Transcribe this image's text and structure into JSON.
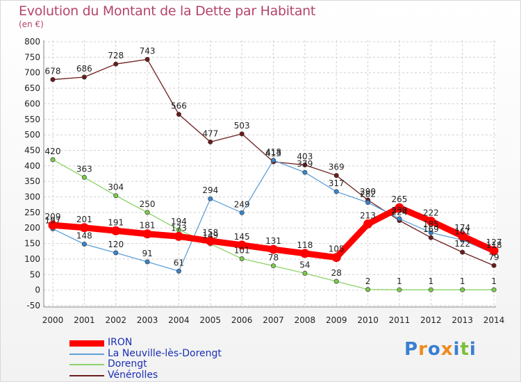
{
  "title": "Evolution du Montant de la Dette par Habitant",
  "unit_label": "(en €)",
  "logo_text": "Proxiti",
  "chart_data": {
    "type": "line",
    "title": "Evolution du Montant de la Dette par Habitant",
    "subtitle": "(en €)",
    "categories": [
      "2000",
      "2001",
      "2002",
      "2003",
      "2004",
      "2005",
      "2006",
      "2007",
      "2008",
      "2009",
      "2010",
      "2011",
      "2012",
      "2013",
      "2014"
    ],
    "ylim": [
      -50,
      800
    ],
    "yticks": [
      -50,
      0,
      50,
      100,
      150,
      200,
      250,
      300,
      350,
      400,
      450,
      500,
      550,
      600,
      650,
      700,
      750,
      800
    ],
    "grid": "dashed horizontal and vertical",
    "legend_position": "bottom-left",
    "series": [
      {
        "name": "Vénérolles",
        "color": "#6b1c1c",
        "dot_color": "#6b1c1c",
        "values": [
          678,
          686,
          728,
          743,
          566,
          477,
          503,
          413,
          403,
          369,
          290,
          224,
          169,
          122,
          79
        ],
        "labels": [
          "678",
          "686",
          "728",
          "743",
          "566",
          "477",
          "503",
          "413",
          "403",
          "369",
          "290",
          "224",
          "169",
          "122",
          "79"
        ]
      },
      {
        "name": "Dorengt",
        "color": "#8ed36a",
        "dot_color": "#7cc94e",
        "values": [
          420,
          363,
          304,
          250,
          194,
          149,
          101,
          78,
          54,
          28,
          2,
          1,
          1,
          1,
          1
        ],
        "labels": [
          "420",
          "363",
          "304",
          "250",
          "194",
          "149",
          "101",
          "78",
          "54",
          "28",
          "2",
          "1",
          "1",
          "1",
          "1"
        ]
      },
      {
        "name": "La Neuville-lès-Dorengt",
        "color": "#5f9fd6",
        "dot_color": "#3b84c9",
        "values": [
          197,
          148,
          120,
          91,
          61,
          294,
          249,
          418,
          379,
          317,
          282,
          230,
          185,
          161,
          118
        ],
        "labels": [
          "197",
          "148",
          "120",
          "91",
          "61",
          "294",
          "249",
          "418",
          "379",
          "317",
          "282",
          "230",
          "185",
          "161",
          "118"
        ]
      },
      {
        "name": "IRON",
        "color": "#ff0000",
        "dot_color": "#ff0000",
        "values": [
          209,
          201,
          191,
          181,
          173,
          158,
          145,
          131,
          118,
          105,
          213,
          265,
          222,
          174,
          127
        ],
        "labels": [
          "209",
          "201",
          "191",
          "181",
          "173",
          "158",
          "145",
          "131",
          "118",
          "105",
          "213",
          "265",
          "222",
          "174",
          "127"
        ]
      }
    ]
  },
  "legend": [
    {
      "name": "IRON",
      "color": "#ff0000"
    },
    {
      "name": "La Neuville-lès-Dorengt",
      "color": "#5f9fd6"
    },
    {
      "name": "Dorengt",
      "color": "#8ed36a"
    },
    {
      "name": "Vénérolles",
      "color": "#6b1c1c"
    }
  ]
}
